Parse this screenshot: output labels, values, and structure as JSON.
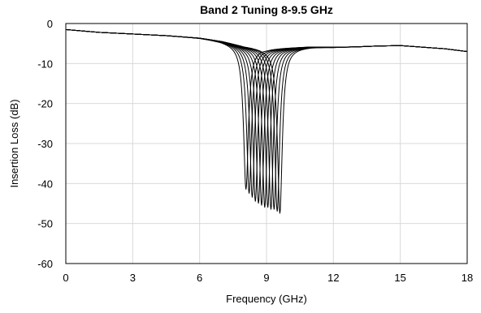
{
  "chart_data": {
    "type": "line",
    "title": "Band 2 Tuning 8-9.5 GHz",
    "xlabel": "Frequency (GHz)",
    "ylabel": "Insertion Loss (dB)",
    "xlim": [
      0,
      18
    ],
    "ylim": [
      -60,
      0
    ],
    "xticks": [
      0,
      3,
      6,
      9,
      12,
      15,
      18
    ],
    "xtick_labels": [
      "0",
      "3",
      "6",
      "9",
      "12",
      "15",
      "18"
    ],
    "yticks": [
      0,
      -10,
      -20,
      -30,
      -40,
      -50,
      -60
    ],
    "ytick_labels": [
      "0",
      "-10",
      "-20",
      "-30",
      "-40",
      "-50",
      "-60"
    ],
    "grid": true,
    "legend": "none",
    "line_color": "#000000",
    "series": [
      {
        "notch_center_ghz": 8.08,
        "notch_depth_db": -41.5
      },
      {
        "notch_center_ghz": 8.22,
        "notch_depth_db": -42.5
      },
      {
        "notch_center_ghz": 8.36,
        "notch_depth_db": -43.5
      },
      {
        "notch_center_ghz": 8.5,
        "notch_depth_db": -44.5
      },
      {
        "notch_center_ghz": 8.64,
        "notch_depth_db": -45.0
      },
      {
        "notch_center_ghz": 8.78,
        "notch_depth_db": -45.5
      },
      {
        "notch_center_ghz": 8.92,
        "notch_depth_db": -46.0
      },
      {
        "notch_center_ghz": 9.06,
        "notch_depth_db": -46.0
      },
      {
        "notch_center_ghz": 9.2,
        "notch_depth_db": -46.5
      },
      {
        "notch_center_ghz": 9.34,
        "notch_depth_db": -46.5
      },
      {
        "notch_center_ghz": 9.48,
        "notch_depth_db": -47.0
      },
      {
        "notch_center_ghz": 9.6,
        "notch_depth_db": -47.5
      }
    ],
    "baseline_db": [
      [
        0,
        -1.5
      ],
      [
        1.5,
        -2.2
      ],
      [
        3,
        -2.6
      ],
      [
        4.5,
        -3.0
      ],
      [
        6,
        -3.6
      ],
      [
        7,
        -4.4
      ],
      [
        8,
        -5.6
      ],
      [
        9,
        -6.2
      ],
      [
        10,
        -6.0
      ],
      [
        11,
        -5.8
      ],
      [
        12,
        -5.9
      ],
      [
        13,
        -5.8
      ],
      [
        14,
        -5.6
      ],
      [
        15,
        -5.5
      ],
      [
        16,
        -5.9
      ],
      [
        17,
        -6.3
      ],
      [
        18,
        -7.0
      ]
    ]
  }
}
